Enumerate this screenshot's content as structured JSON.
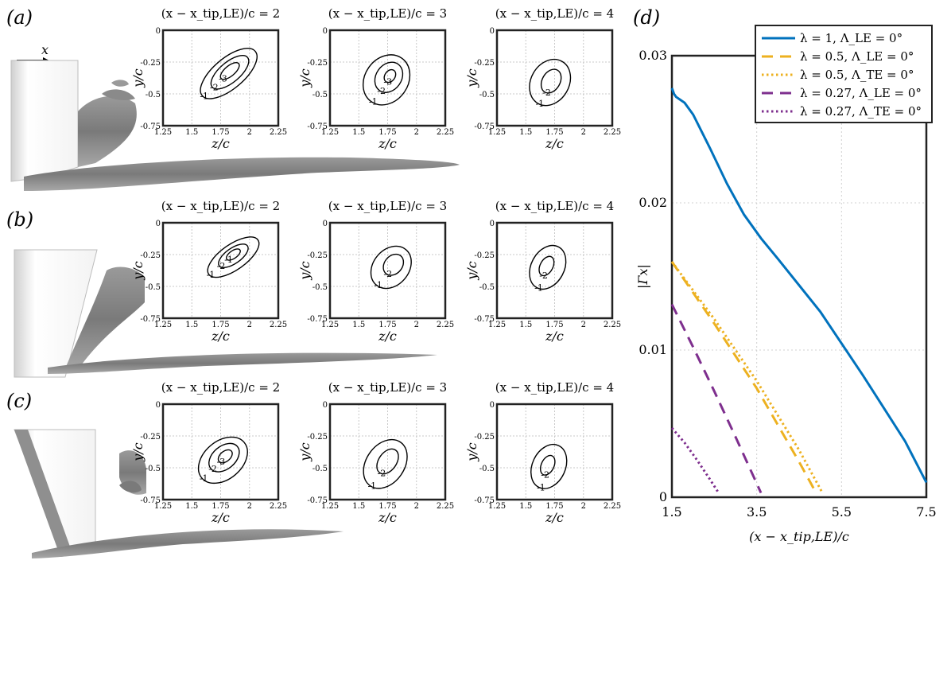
{
  "panel_labels": [
    "(a)",
    "(b)",
    "(c)",
    "(d)"
  ],
  "axis_glyphs": {
    "x": "x",
    "z": "z"
  },
  "contour_plots": {
    "titles": [
      "(x − x_tip,LE)/c = 2",
      "(x − x_tip,LE)/c = 3",
      "(x − x_tip,LE)/c = 4"
    ],
    "xlabel": "z/c",
    "ylabel": "y/c",
    "xticks": [
      "1.25",
      "1.5",
      "1.75",
      "2",
      "2.25"
    ],
    "yticks": [
      "0",
      "-0.25",
      "-0.5",
      "-0.75"
    ],
    "rows": [
      {
        "panel": "(a)",
        "levels": [
          [
            "-1",
            "-2",
            "-3"
          ],
          [
            "-1",
            "-2",
            "-3"
          ],
          [
            "-1",
            "-2"
          ]
        ]
      },
      {
        "panel": "(b)",
        "levels": [
          [
            "-1",
            "-2",
            "-1"
          ],
          [
            "-1",
            "-2",
            "-1"
          ],
          [
            "-1",
            "-2"
          ]
        ]
      },
      {
        "panel": "(c)",
        "levels": [
          [
            "-1",
            "-2",
            "-3"
          ],
          [
            "-1",
            "-2",
            "-1"
          ],
          [
            "-1",
            "-2"
          ]
        ]
      }
    ]
  },
  "chart_data": {
    "type": "line",
    "xlabel": "(x − x_tip,LE)/c",
    "ylabel": "|Γx|",
    "xlim": [
      1.5,
      7.5
    ],
    "ylim": [
      0,
      0.03
    ],
    "xticks": [
      "1.5",
      "3.5",
      "5.5",
      "7.5"
    ],
    "yticks": [
      "0",
      "0.01",
      "0.02",
      "0.03"
    ],
    "grid": true,
    "legend_position": "top-right",
    "series": [
      {
        "name": "λ = 1,    Λ_LE = 0°",
        "color": "#0072BD",
        "dash": "solid",
        "x": [
          1.5,
          1.55,
          1.6,
          1.8,
          2.0,
          2.4,
          2.8,
          3.2,
          3.6,
          4.0,
          5.0,
          6.0,
          7.0,
          7.5
        ],
        "y": [
          0.0278,
          0.0274,
          0.0272,
          0.0268,
          0.026,
          0.0237,
          0.0213,
          0.0192,
          0.0176,
          0.0162,
          0.0126,
          0.0083,
          0.0038,
          0.001
        ]
      },
      {
        "name": "λ = 0.5,  Λ_LE = 0°",
        "color": "#EDB120",
        "dash": "dashed",
        "x": [
          1.5,
          2.5,
          3.5,
          4.5,
          4.9
        ],
        "y": [
          0.016,
          0.0118,
          0.0074,
          0.0024,
          0.0003
        ]
      },
      {
        "name": "λ = 0.5,  Λ_TE = 0°",
        "color": "#EDB120",
        "dash": "dotted",
        "x": [
          1.5,
          2.5,
          3.5,
          4.5,
          5.05
        ],
        "y": [
          0.016,
          0.0121,
          0.0079,
          0.0032,
          0.0003
        ]
      },
      {
        "name": "λ = 0.27, Λ_LE = 0°",
        "color": "#7E2F8E",
        "dash": "dashed",
        "x": [
          1.5,
          2.0,
          2.5,
          3.0,
          3.6
        ],
        "y": [
          0.0131,
          0.0102,
          0.0072,
          0.0041,
          0.0003
        ]
      },
      {
        "name": "λ = 0.27, Λ_TE = 0°",
        "color": "#7E2F8E",
        "dash": "dotted",
        "x": [
          1.5,
          1.8,
          2.1,
          2.4,
          2.6
        ],
        "y": [
          0.0047,
          0.0037,
          0.0025,
          0.0012,
          0.0003
        ]
      }
    ]
  }
}
